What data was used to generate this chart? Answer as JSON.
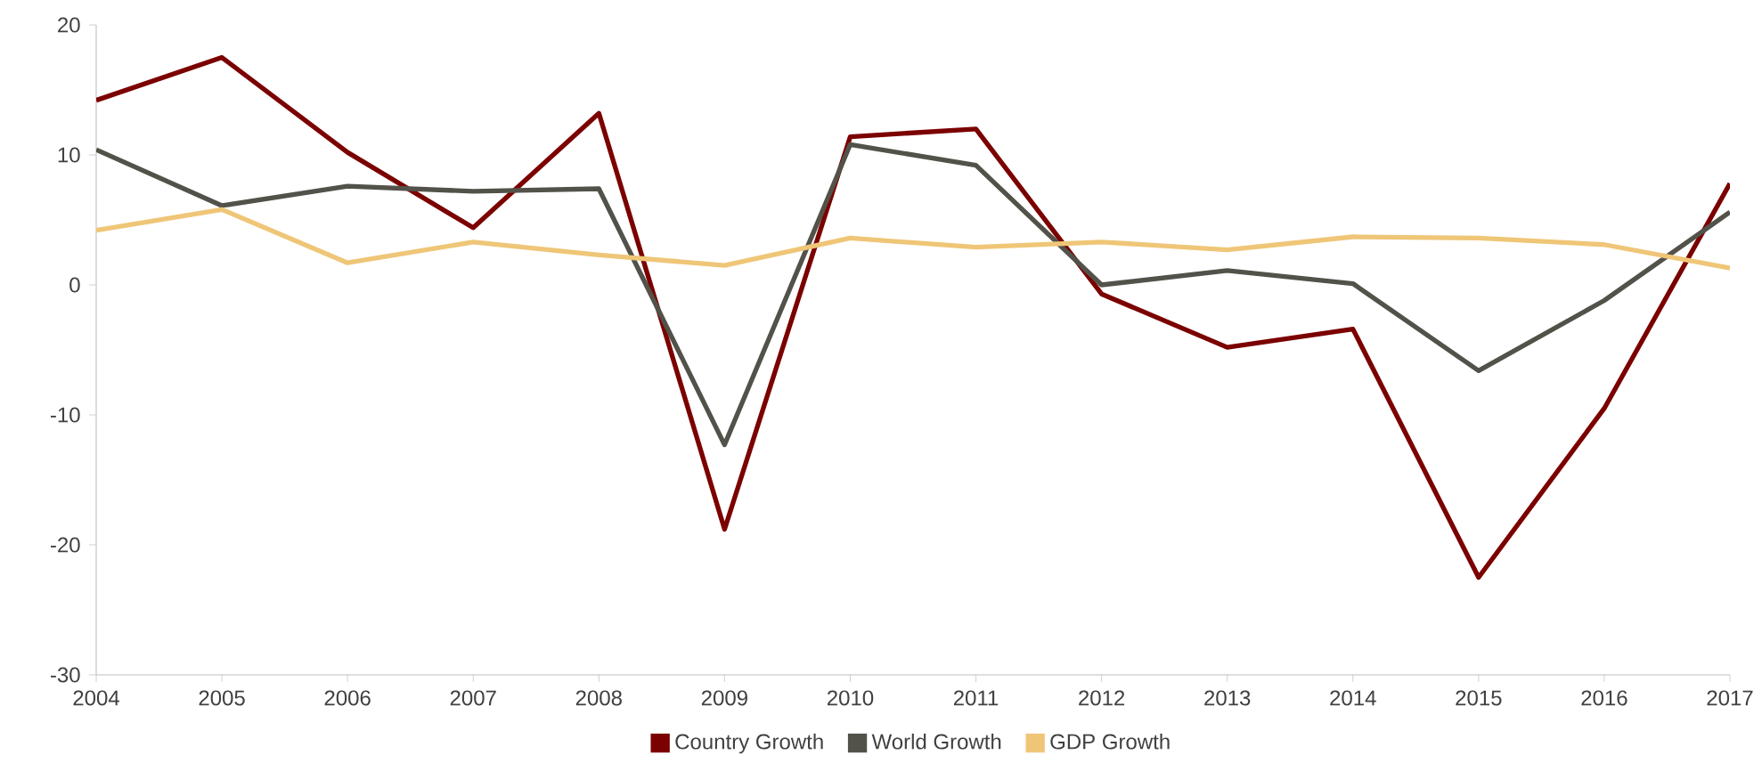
{
  "chart_data": {
    "type": "line",
    "x": [
      2004,
      2005,
      2006,
      2007,
      2008,
      2009,
      2010,
      2011,
      2012,
      2013,
      2014,
      2015,
      2016,
      2017
    ],
    "xlim": [
      2004,
      2017
    ],
    "xticks": [
      2004,
      2005,
      2006,
      2007,
      2008,
      2009,
      2010,
      2011,
      2012,
      2013,
      2014,
      2015,
      2016,
      2017
    ],
    "ylim": [
      -30,
      20
    ],
    "yticks": [
      -30,
      -20,
      -10,
      0,
      10,
      20
    ],
    "legend": "bottom",
    "series": [
      {
        "name": "Country Growth",
        "color": "#7b0000",
        "values": [
          14.2,
          17.5,
          10.2,
          4.4,
          13.2,
          -18.8,
          11.4,
          12.0,
          -0.7,
          -4.8,
          -3.4,
          -22.5,
          -9.5,
          7.8
        ]
      },
      {
        "name": "World Growth",
        "color": "#52524a",
        "values": [
          10.4,
          6.1,
          7.6,
          7.2,
          7.4,
          -12.3,
          10.8,
          9.2,
          0.0,
          1.1,
          0.1,
          -6.6,
          -1.2,
          5.6
        ]
      },
      {
        "name": "GDP Growth",
        "color": "#efc677",
        "values": [
          4.2,
          5.8,
          1.7,
          3.3,
          2.3,
          1.5,
          3.6,
          2.9,
          3.3,
          2.7,
          3.7,
          3.6,
          3.1,
          1.3
        ]
      }
    ]
  }
}
